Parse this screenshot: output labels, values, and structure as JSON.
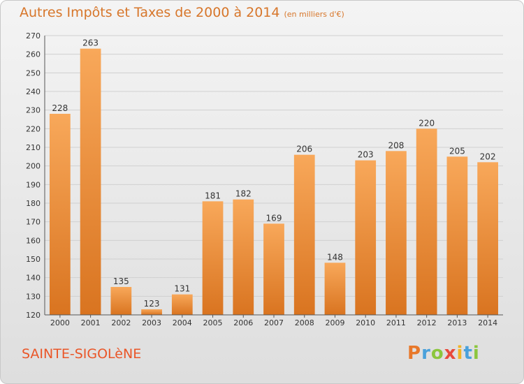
{
  "header": {
    "title": "Autres Impôts et Taxes de 2000 à 2014",
    "unit": "(en milliers d'€)"
  },
  "footer": {
    "city": "SAINTE-SIGOLèNE",
    "logo_letters": [
      "P",
      "r",
      "o",
      "x",
      "i",
      "t",
      "i"
    ],
    "logo_colors": [
      "#e8782a",
      "#4aa1db",
      "#8cc63e",
      "#e84a3c",
      "#f2b424",
      "#4aa1db",
      "#8cc63e"
    ]
  },
  "colors": {
    "bar_top": "#f8a85a",
    "bar_bottom": "#d97420",
    "grid": "#d0d0d0",
    "title": "#d7762a",
    "city": "#ea5628"
  },
  "chart_data": {
    "type": "bar",
    "title": "Autres Impôts et Taxes de 2000 à 2014",
    "subtitle": "(en milliers d'€)",
    "categories": [
      "2000",
      "2001",
      "2002",
      "2003",
      "2004",
      "2005",
      "2006",
      "2007",
      "2008",
      "2009",
      "2010",
      "2011",
      "2012",
      "2013",
      "2014"
    ],
    "values": [
      228,
      263,
      135,
      123,
      131,
      181,
      182,
      169,
      206,
      148,
      203,
      208,
      220,
      205,
      202
    ],
    "ylim": [
      120,
      270
    ],
    "yticks": [
      120,
      130,
      140,
      150,
      160,
      170,
      180,
      190,
      200,
      210,
      220,
      230,
      240,
      250,
      260,
      270
    ],
    "grid": true,
    "xlabel": "",
    "ylabel": ""
  }
}
